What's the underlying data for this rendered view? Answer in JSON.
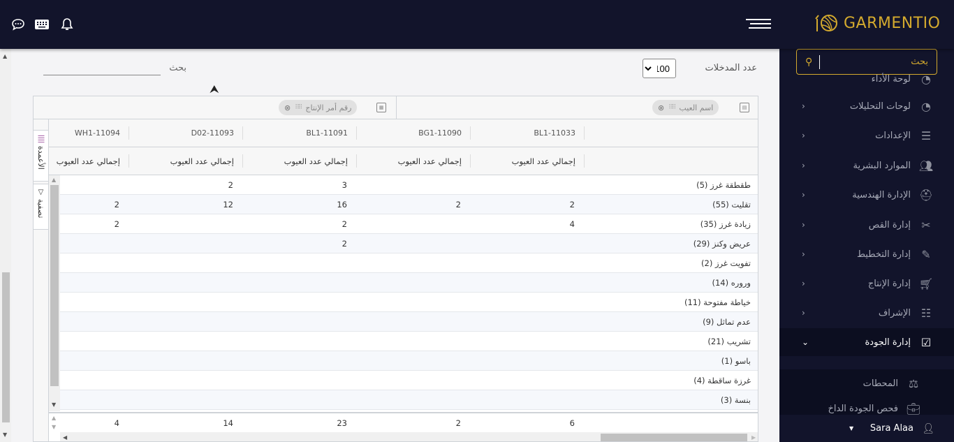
{
  "topbar": {
    "brand": "GARMENTIO",
    "icons": [
      "chat-icon",
      "keyboard-icon",
      "bell-icon",
      "hamburger-icon"
    ]
  },
  "sidebar": {
    "search_placeholder": "بحث",
    "items": [
      {
        "label": "لوحة الأداء",
        "icon": "dashboard-icon",
        "chevron": false
      },
      {
        "label": "لوحات التحليلات",
        "icon": "dashboard-icon",
        "chevron": true
      },
      {
        "label": "الإعدادات",
        "icon": "sliders-icon",
        "chevron": true
      },
      {
        "label": "الموارد البشرية",
        "icon": "users-icon",
        "chevron": true
      },
      {
        "label": "الإدارة الهندسية",
        "icon": "hardhat-icon",
        "chevron": true
      },
      {
        "label": "إدارة القص",
        "icon": "scissors-icon",
        "chevron": true
      },
      {
        "label": "إدارة التخطيط",
        "icon": "pencil-ruler-icon",
        "chevron": true
      },
      {
        "label": "إدارة الإنتاج",
        "icon": "cart-icon",
        "chevron": true
      },
      {
        "label": "الإشراف",
        "icon": "checklist-icon",
        "chevron": true
      },
      {
        "label": "إدارة الجودة",
        "icon": "clipboard-check-icon",
        "chevron": true,
        "active": true
      }
    ],
    "subitems": [
      {
        "label": "المحطات",
        "icon": "balance-icon"
      },
      {
        "label": "فحص الجودة الداخ",
        "icon": "briefcase-icon"
      }
    ],
    "user": "Sara Alaa"
  },
  "toolbar": {
    "search_label": "بحث",
    "entries_label": "عدد المدخلات",
    "entries_value": "100"
  },
  "pivot": {
    "row_field": "اسم العيب",
    "column_field": "رقم أمر الإنتاج",
    "side_tabs": [
      "الأعمدة",
      "تصفية"
    ],
    "columns": [
      "BL1-11033",
      "BG1-11090",
      "BL1-11091",
      "D02-11093",
      "WH1-11094"
    ],
    "measure": "إجمالي عدد العيوب",
    "rows": [
      {
        "label": "طقطقة غرز (5)",
        "values": [
          "",
          "",
          "3",
          "2",
          ""
        ]
      },
      {
        "label": "تقليت (55)",
        "values": [
          "2",
          "2",
          "16",
          "12",
          "2"
        ]
      },
      {
        "label": "زيادة غرز (35)",
        "values": [
          "4",
          "",
          "2",
          "",
          "2"
        ]
      },
      {
        "label": "عريض وكنز (29)",
        "values": [
          "",
          "",
          "2",
          "",
          ""
        ]
      },
      {
        "label": "تفويت غرز (2)",
        "values": [
          "",
          "",
          "",
          "",
          ""
        ]
      },
      {
        "label": "وروره (14)",
        "values": [
          "",
          "",
          "",
          "",
          ""
        ]
      },
      {
        "label": "خياطة مفتوحة (11)",
        "values": [
          "",
          "",
          "",
          "",
          ""
        ]
      },
      {
        "label": "عدم تماثل (9)",
        "values": [
          "",
          "",
          "",
          "",
          ""
        ]
      },
      {
        "label": "تشريب (21)",
        "values": [
          "",
          "",
          "",
          "",
          ""
        ]
      },
      {
        "label": "باسو (1)",
        "values": [
          "",
          "",
          "",
          "",
          ""
        ]
      },
      {
        "label": "غرزة ساقطة (4)",
        "values": [
          "",
          "",
          "",
          "",
          ""
        ]
      },
      {
        "label": "بنسة (3)",
        "values": [
          "",
          "",
          "",
          "",
          ""
        ]
      }
    ],
    "totals": [
      "6",
      "2",
      "23",
      "14",
      "4"
    ]
  }
}
